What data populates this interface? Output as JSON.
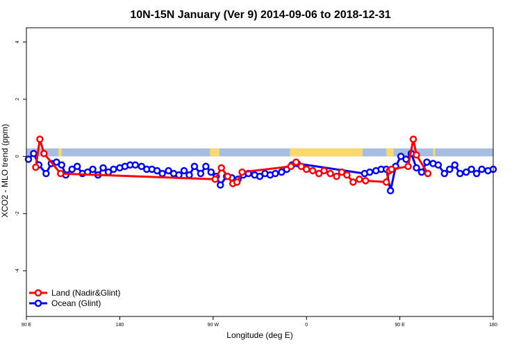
{
  "chart_data": {
    "type": "line",
    "title": "10N-15N January (Ver 9)   2014-09-06 to 2018-12-31",
    "xlabel": "Longitude (deg E)",
    "ylabel": "XCO2 - MLO trend (ppm)",
    "x_ticks": [
      {
        "label": "90 E",
        "lon": 90
      },
      {
        "label": "180",
        "lon": 180
      },
      {
        "label": "90 W",
        "lon": 270
      },
      {
        "label": "0",
        "lon": 360
      },
      {
        "label": "90 E",
        "lon": 450
      },
      {
        "label": "180",
        "lon": 540
      }
    ],
    "y_ticks": [
      {
        "label": "4",
        "value": 4
      },
      {
        "label": "2",
        "value": 2
      },
      {
        "label": "0",
        "value": 0
      },
      {
        "label": "-2",
        "value": -2
      },
      {
        "label": "-4",
        "value": -4
      }
    ],
    "xlim": [
      90,
      540
    ],
    "ylim": [
      -5.6,
      4.5
    ],
    "land_mask": {
      "band_color": "#a7bee0",
      "land_color": "#f9d96f",
      "ylim": [
        0,
        0.28
      ],
      "land_spans": [
        [
          121,
          124
        ],
        [
          267,
          276
        ],
        [
          344,
          414
        ],
        [
          437,
          444
        ],
        [
          482,
          484
        ]
      ]
    },
    "series": [
      {
        "name": "Land (Nadir&Glint)",
        "color": "#ff0000",
        "x": [
          99,
          103,
          107,
          123,
          272,
          278,
          284,
          289,
          293,
          298,
          345,
          350,
          355,
          360,
          366,
          372,
          377,
          383,
          389,
          394,
          399,
          405,
          411,
          417,
          437,
          440,
          442,
          458,
          463,
          466,
          477
        ],
        "y": [
          -0.38,
          0.6,
          0.1,
          -0.6,
          -0.8,
          -0.4,
          -0.7,
          -0.95,
          -0.9,
          -0.55,
          -0.35,
          -0.2,
          -0.35,
          -0.45,
          -0.5,
          -0.6,
          -0.5,
          -0.6,
          -0.7,
          -0.55,
          -0.65,
          -0.9,
          -0.8,
          -0.85,
          -0.9,
          -0.5,
          -0.45,
          -0.35,
          0.6,
          0.05,
          -0.6
        ]
      },
      {
        "name": "Ocean (Glint)",
        "color": "#0000ff",
        "x": [
          92,
          97,
          102,
          109,
          114,
          119,
          124,
          128,
          134,
          139,
          144,
          149,
          154,
          159,
          164,
          169,
          174,
          180,
          185,
          190,
          195,
          201,
          206,
          211,
          216,
          221,
          227,
          232,
          237,
          242,
          247,
          252,
          258,
          263,
          268,
          273,
          277,
          283,
          288,
          294,
          299,
          304,
          310,
          315,
          320,
          325,
          330,
          336,
          341,
          346,
          351,
          416,
          421,
          427,
          432,
          437,
          441,
          446,
          451,
          456,
          461,
          466,
          471,
          476,
          482,
          487,
          493,
          498,
          503,
          508,
          514,
          519,
          524,
          529,
          535,
          540
        ],
        "y": [
          -0.1,
          0.1,
          -0.3,
          -0.6,
          -0.25,
          -0.2,
          -0.3,
          -0.65,
          -0.45,
          -0.35,
          -0.6,
          -0.55,
          -0.45,
          -0.65,
          -0.4,
          -0.55,
          -0.45,
          -0.4,
          -0.35,
          -0.3,
          -0.3,
          -0.35,
          -0.45,
          -0.45,
          -0.5,
          -0.6,
          -0.5,
          -0.6,
          -0.65,
          -0.5,
          -0.65,
          -0.35,
          -0.6,
          -0.35,
          -0.55,
          -0.7,
          -1.0,
          -0.7,
          -0.75,
          -0.8,
          -0.65,
          -0.6,
          -0.65,
          -0.7,
          -0.6,
          -0.65,
          -0.6,
          -0.55,
          -0.45,
          -0.3,
          -0.25,
          -0.6,
          -0.55,
          -0.5,
          -0.45,
          -0.45,
          -1.2,
          -0.35,
          0.0,
          -0.1,
          0.1,
          -0.4,
          -0.55,
          -0.2,
          -0.25,
          -0.3,
          -0.6,
          -0.45,
          -0.3,
          -0.6,
          -0.55,
          -0.45,
          -0.6,
          -0.45,
          -0.5,
          -0.45
        ]
      }
    ],
    "legend_position": "bottom-left",
    "grid": false
  }
}
